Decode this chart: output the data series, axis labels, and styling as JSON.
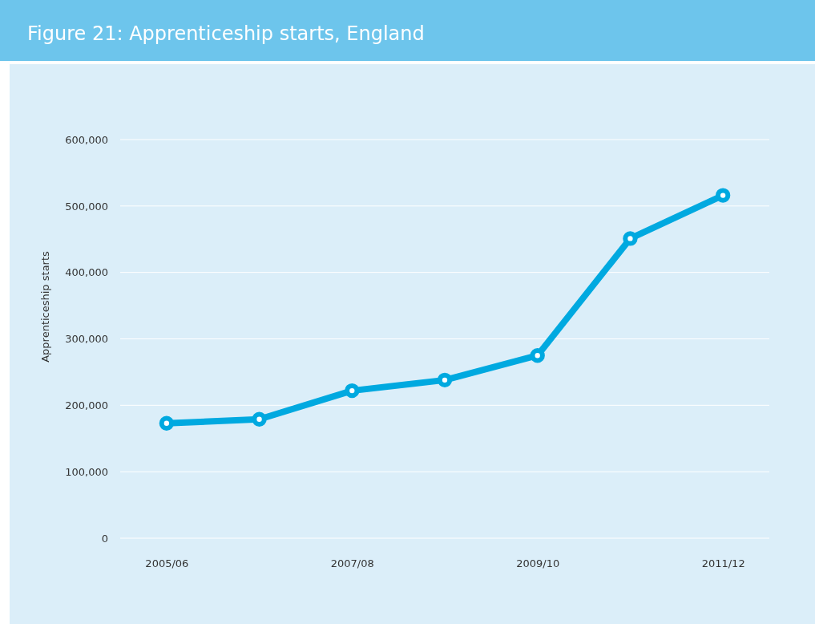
{
  "chart_data": {
    "type": "line",
    "title": "Figure 21: Apprenticeship starts, England",
    "ylabel": "Apprenticeship starts",
    "categories": [
      "2005/06",
      null,
      "2007/08",
      null,
      "2009/10",
      null,
      "2011/12"
    ],
    "series": [
      {
        "color": "#00a9e0",
        "values": [
          173000,
          179000,
          222000,
          238000,
          275000,
          451000,
          516000
        ]
      }
    ],
    "ylim": [
      0,
      600000
    ],
    "yticks": [
      {
        "value": 0,
        "label": "0"
      },
      {
        "value": 100000,
        "label": "100,000"
      },
      {
        "value": 200000,
        "label": "200,000"
      },
      {
        "value": 300000,
        "label": "300,000"
      },
      {
        "value": 400000,
        "label": "400,000"
      },
      {
        "value": 500000,
        "label": "500,000"
      },
      {
        "value": 600000,
        "label": "600,000"
      }
    ],
    "grid": "y",
    "marker": "circle",
    "line_style": "solid"
  }
}
